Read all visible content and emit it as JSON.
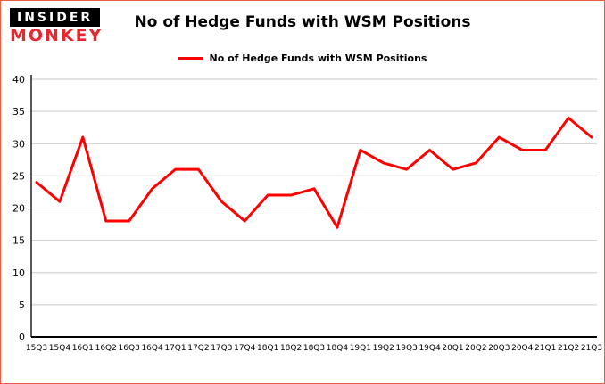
{
  "header": {
    "logo_line1": "INSIDER",
    "logo_line2": "MONKEY",
    "title": "No of Hedge Funds with WSM Positions"
  },
  "legend": {
    "label": "No of Hedge Funds with WSM Positions",
    "color": "#ff0000"
  },
  "chart_data": {
    "type": "line",
    "title": "No of Hedge Funds with WSM Positions",
    "categories": [
      "15Q3",
      "15Q4",
      "16Q1",
      "16Q2",
      "16Q3",
      "16Q4",
      "17Q1",
      "17Q2",
      "17Q3",
      "17Q4",
      "18Q1",
      "18Q2",
      "18Q3",
      "18Q4",
      "19Q1",
      "19Q2",
      "19Q3",
      "19Q4",
      "20Q1",
      "20Q2",
      "20Q3",
      "20Q4",
      "21Q1",
      "21Q2",
      "21Q3"
    ],
    "series": [
      {
        "name": "No of Hedge Funds with WSM Positions",
        "color": "#ff0000",
        "values": [
          24,
          21,
          31,
          18,
          18,
          23,
          26,
          26,
          21,
          18,
          22,
          22,
          23,
          17,
          29,
          27,
          26,
          29,
          26,
          27,
          31,
          29,
          29,
          34,
          31
        ]
      }
    ],
    "xlabel": "",
    "ylabel": "",
    "ylim": [
      0,
      40
    ],
    "ytick_step": 5,
    "yticks": [
      0,
      5,
      10,
      15,
      20,
      25,
      30,
      35,
      40
    ],
    "grid": true,
    "legend_position": "top"
  },
  "colors": {
    "line": "#ff0000",
    "grid": "#c9c9c9",
    "axis": "#000000",
    "text": "#000000",
    "page_border": "#ef5b43"
  }
}
